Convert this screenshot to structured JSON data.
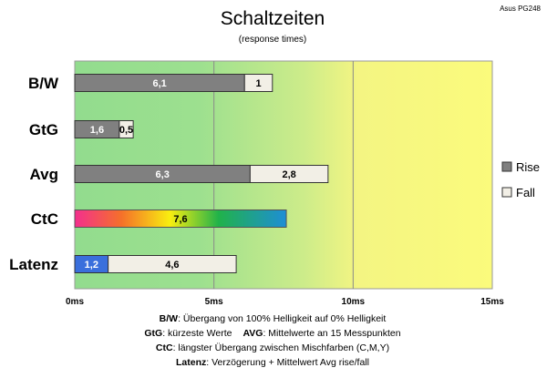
{
  "header": {
    "title": "Schaltzeiten",
    "subtitle": "(response times)",
    "brand": "Asus PG248"
  },
  "chart_data": {
    "type": "bar",
    "stacked": true,
    "orientation": "horizontal",
    "categories": [
      "B/W",
      "GtG",
      "Avg",
      "CtC",
      "Latenz"
    ],
    "series": [
      {
        "name": "Rise",
        "values": [
          6.1,
          1.6,
          6.3,
          null,
          1.2
        ],
        "color": "#808080"
      },
      {
        "name": "Fall",
        "values": [
          1,
          0.5,
          2.8,
          null,
          4.6
        ],
        "color": "#f2efe6"
      }
    ],
    "ctc": {
      "value": 7.6,
      "label": "7,6",
      "fill": "rainbow gradient"
    },
    "value_labels": {
      "Rise": [
        "6,1",
        "1,6",
        "6,3",
        "",
        "1,2"
      ],
      "Fall": [
        "1",
        "0,5",
        "2,8",
        "",
        "4,6"
      ]
    },
    "latency_rise_color": "#3a6fdc",
    "xlim": [
      0,
      15
    ],
    "xticks": [
      0,
      5,
      10,
      15
    ],
    "xtick_labels": [
      "0ms",
      "5ms",
      "10ms",
      "15ms"
    ],
    "grid": true,
    "legend_position": "right",
    "background": "green-to-yellow gradient"
  },
  "legend": [
    {
      "label": "Rise",
      "color": "#808080"
    },
    {
      "label": "Fall",
      "color": "#f2efe6"
    }
  ],
  "footer": {
    "line1": {
      "bold": "B/W",
      "text": ":  Übergang von 100% Helligkeit auf 0% Helligkeit"
    },
    "line2a": {
      "bold": "GtG",
      "text": ": kürzeste  Werte"
    },
    "line2b": {
      "bold": "AVG",
      "text": ": Mittelwerte  an 15 Messpunkten"
    },
    "line3": {
      "bold": "CtC",
      "text": ": längster Übergang  zwischen Mischfarben  (C,M,Y)"
    },
    "line4": {
      "bold": "Latenz",
      "text": ": Verzögerung  + Mittelwert Avg rise/fall"
    }
  }
}
